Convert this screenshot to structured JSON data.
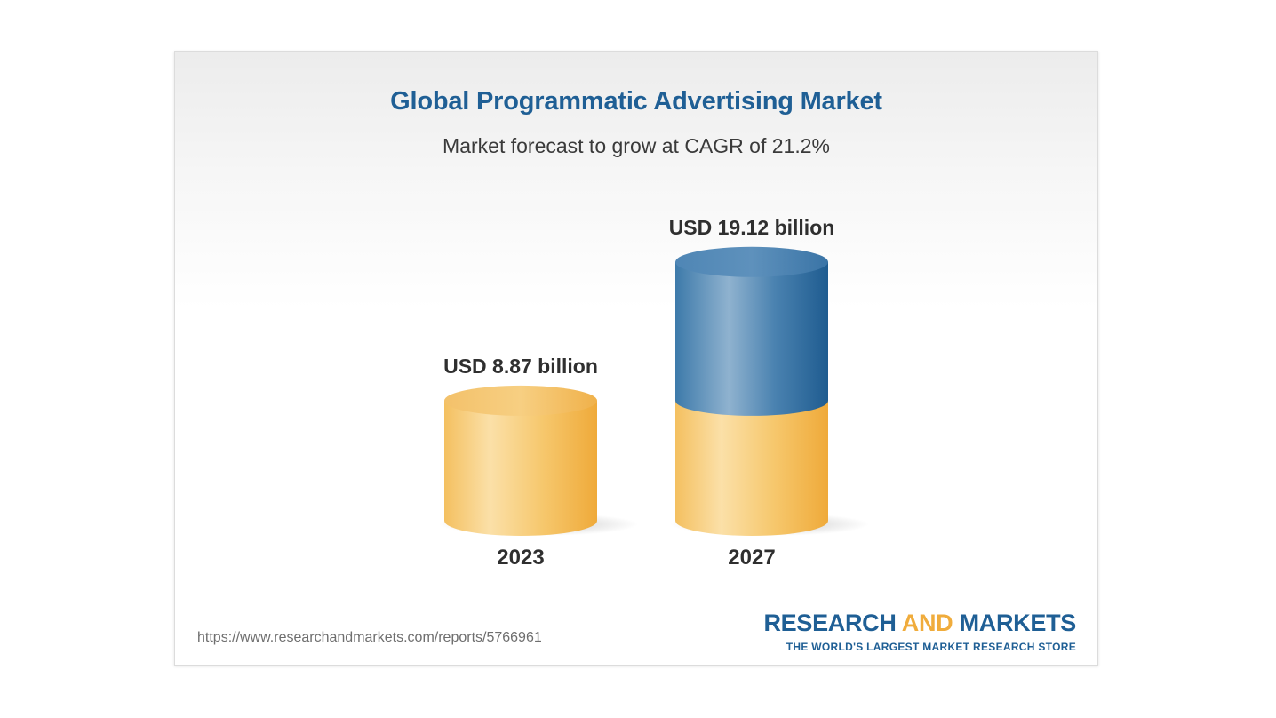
{
  "chart_data": {
    "type": "bar",
    "title": "Global Programmatic Advertising Market",
    "subtitle": "Market forecast to grow at CAGR of 21.2%",
    "categories": [
      "2023",
      "2027"
    ],
    "values": [
      8.87,
      19.12
    ],
    "value_labels": [
      "USD 8.87 billion",
      "USD 19.12 billion"
    ],
    "unit": "USD billion",
    "grid": false,
    "colors": {
      "base": "#f2b750",
      "growth": "#2f6d9e"
    }
  },
  "footer": {
    "url": "https://www.researchandmarkets.com/reports/5766961",
    "brand_part1": "RESEARCH ",
    "brand_part2": "AND",
    "brand_part3": " MARKETS",
    "tagline": "THE WORLD'S LARGEST MARKET RESEARCH STORE"
  }
}
